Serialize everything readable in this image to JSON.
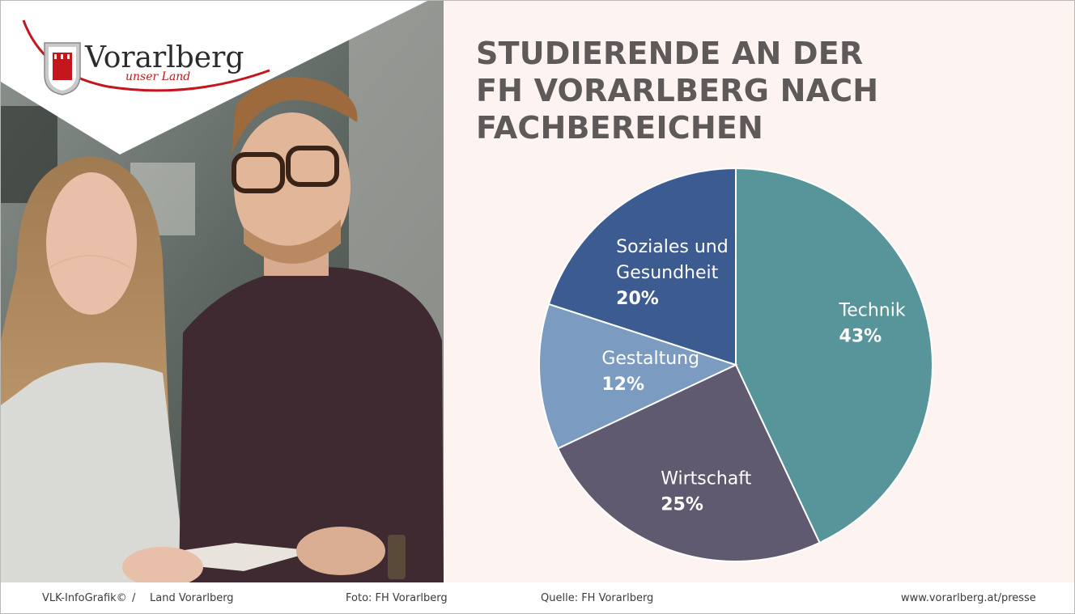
{
  "logo": {
    "name": "Vorarlberg",
    "tagline": "unser Land"
  },
  "title_lines": [
    "STUDIERENDE AN DER",
    "FH VORARLBERG NACH",
    "FACHBEREICHEN"
  ],
  "chart_data": {
    "type": "pie",
    "title": "STUDIERENDE AN DER FH VORARLBERG NACH FACHBEREICHEN",
    "slices": [
      {
        "label_lines": [
          "Technik"
        ],
        "value": 43,
        "pct_label": "43%",
        "color": "#57959a"
      },
      {
        "label_lines": [
          "Wirtschaft"
        ],
        "value": 25,
        "pct_label": "25%",
        "color": "#5f5a6f"
      },
      {
        "label_lines": [
          "Gestaltung"
        ],
        "value": 12,
        "pct_label": "12%",
        "color": "#7b9bc0"
      },
      {
        "label_lines": [
          "Soziales und",
          "Gesundheit"
        ],
        "value": 20,
        "pct_label": "20%",
        "color": "#3c5c91"
      }
    ],
    "start": "12 o'clock",
    "direction": "clockwise",
    "legend": "none, labels inside slices"
  },
  "footer": {
    "credit": "VLK-InfoGrafik©",
    "separator": "/",
    "org": "Land Vorarlberg",
    "photo": "Foto: FH Vorarlberg",
    "source": "Quelle: FH Vorarlberg",
    "url": "www.vorarlberg.at/presse"
  },
  "colors": {
    "background": "#fdf3f0",
    "title": "#5f5a5a",
    "brand_red": "#c4161c"
  }
}
